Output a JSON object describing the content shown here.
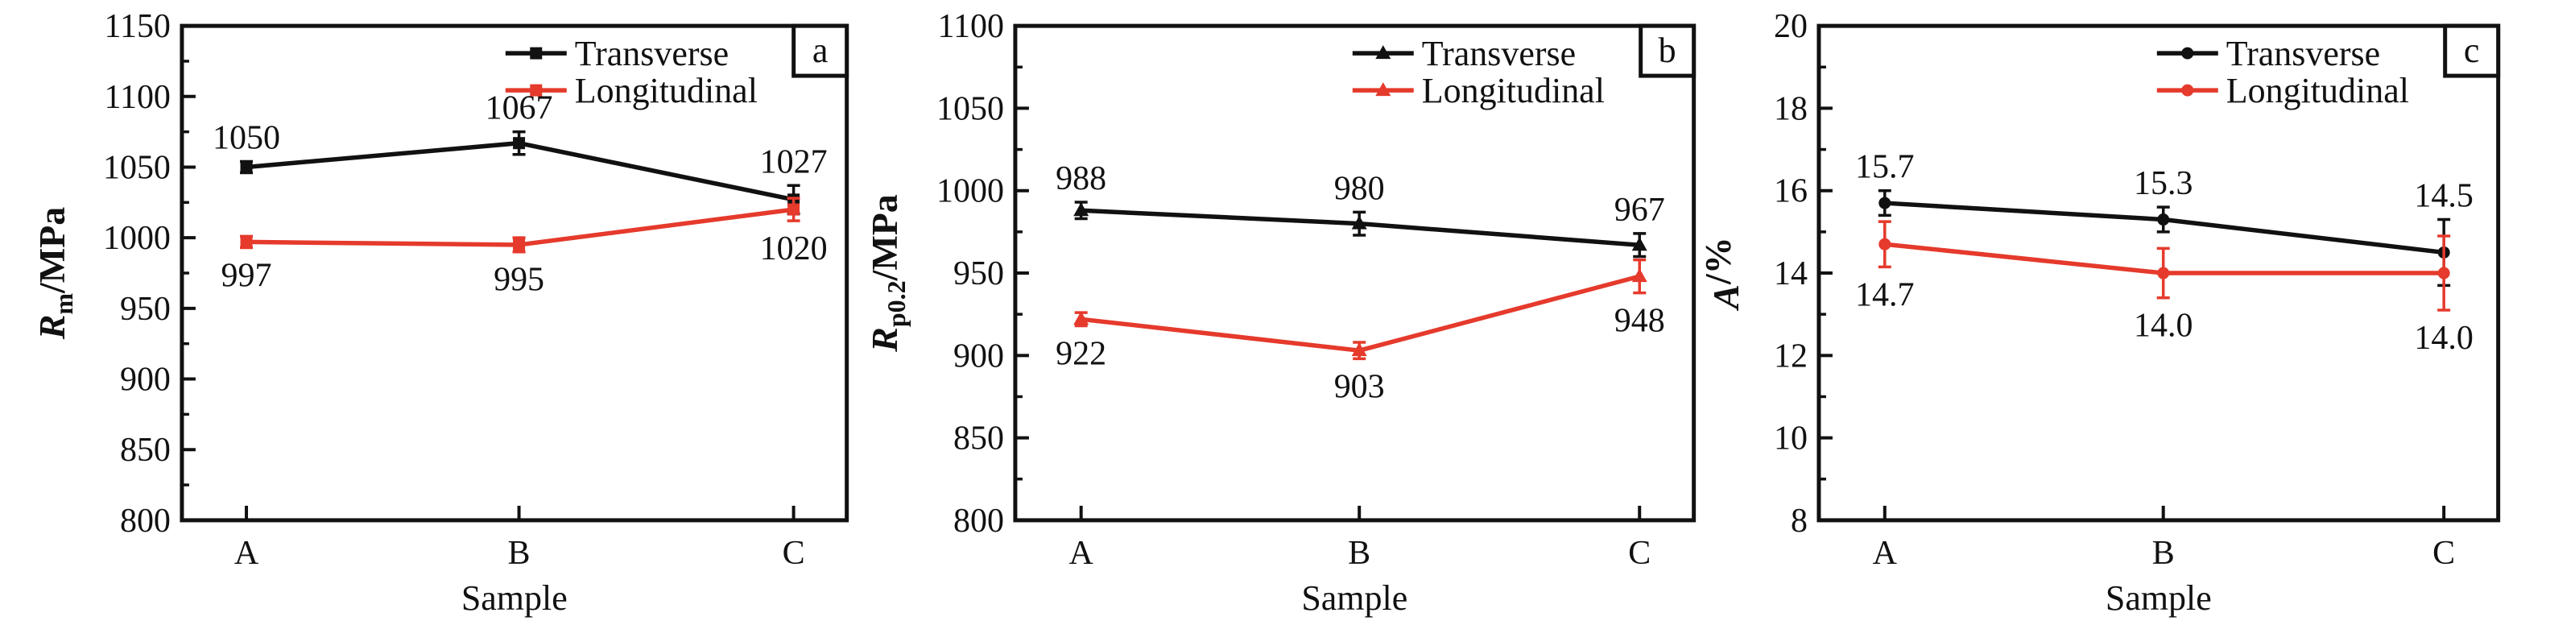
{
  "figure": {
    "background": "#ffffff",
    "axis_color": "#111111",
    "label_color": "#111111"
  },
  "chart_data": [
    {
      "type": "line",
      "panel_label": "a",
      "xlabel": "Sample",
      "ylabel": {
        "symbol": "R",
        "subscript": "m",
        "unit": "/MPa"
      },
      "categories": [
        "A",
        "B",
        "C"
      ],
      "ylim": [
        800,
        1150
      ],
      "yticks": [
        800,
        850,
        900,
        950,
        1000,
        1050,
        1100,
        1150
      ],
      "yminor_step": 25,
      "grid": false,
      "legend_position": "top-right",
      "series": [
        {
          "name": "Transverse",
          "color": "#111111",
          "marker": "square",
          "values": [
            1050,
            1067,
            1027
          ],
          "errors": [
            4,
            8,
            10
          ],
          "labels": [
            "1050",
            "1067",
            "1027"
          ],
          "label_side": "above"
        },
        {
          "name": "Longitudinal",
          "color": "#e53a2c",
          "marker": "square",
          "values": [
            997,
            995,
            1020
          ],
          "errors": [
            4,
            5,
            8
          ],
          "labels": [
            "997",
            "995",
            "1020"
          ],
          "label_side": "below"
        }
      ]
    },
    {
      "type": "line",
      "panel_label": "b",
      "xlabel": "Sample",
      "ylabel": {
        "symbol": "R",
        "subscript": "p0.2",
        "unit": "/MPa"
      },
      "categories": [
        "A",
        "B",
        "C"
      ],
      "ylim": [
        800,
        1100
      ],
      "yticks": [
        800,
        850,
        900,
        950,
        1000,
        1050,
        1100
      ],
      "yminor_step": 25,
      "grid": false,
      "legend_position": "top-right",
      "series": [
        {
          "name": "Transverse",
          "color": "#111111",
          "marker": "triangle",
          "values": [
            988,
            980,
            967
          ],
          "errors": [
            5,
            7,
            7
          ],
          "labels": [
            "988",
            "980",
            "967"
          ],
          "label_side": "above"
        },
        {
          "name": "Longitudinal",
          "color": "#e53a2c",
          "marker": "triangle",
          "values": [
            922,
            903,
            948
          ],
          "errors": [
            4,
            5,
            10
          ],
          "labels": [
            "922",
            "903",
            "948"
          ],
          "label_side": "below"
        }
      ]
    },
    {
      "type": "line",
      "panel_label": "c",
      "xlabel": "Sample",
      "ylabel": {
        "symbol": "A",
        "subscript": "",
        "unit": "/%"
      },
      "categories": [
        "A",
        "B",
        "C"
      ],
      "ylim": [
        8,
        20
      ],
      "yticks": [
        8,
        10,
        12,
        14,
        16,
        18,
        20
      ],
      "yminor_step": 1,
      "grid": false,
      "legend_position": "top-right",
      "series": [
        {
          "name": "Transverse",
          "color": "#111111",
          "marker": "circle",
          "values": [
            15.7,
            15.3,
            14.5
          ],
          "errors": [
            0.3,
            0.3,
            0.8
          ],
          "labels": [
            "15.7",
            "15.3",
            "14.5"
          ],
          "label_side": "above"
        },
        {
          "name": "Longitudinal",
          "color": "#e53a2c",
          "marker": "circle",
          "values": [
            14.7,
            14.0,
            14.0
          ],
          "errors": [
            0.55,
            0.6,
            0.9
          ],
          "labels": [
            "14.7",
            "14.0",
            "14.0"
          ],
          "label_side": "below"
        }
      ]
    }
  ]
}
